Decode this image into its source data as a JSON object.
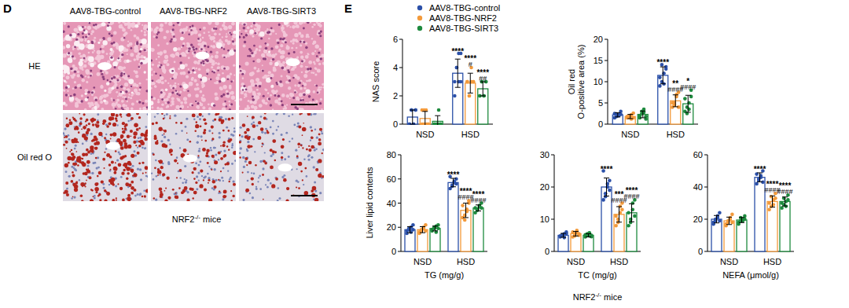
{
  "panel_d": {
    "label": "D",
    "columns": [
      "AAV8-TBG-control",
      "AAV8-TBG-NRF2",
      "AAV8-TBG-SIRT3"
    ],
    "rows": [
      "HE",
      "Oil red O"
    ],
    "caption": {
      "base": "NRF2",
      "sup": "-/-",
      "rest": " mice"
    }
  },
  "panel_e": {
    "label": "E",
    "shared_y_label": "Liver lipid contents",
    "caption": {
      "base": "NRF2",
      "sup": "-/-",
      "rest": " mice"
    }
  },
  "chart_data": [
    {
      "type": "bar",
      "y_label": [
        "NAS score"
      ],
      "categories": [
        "NSD",
        "HSD"
      ],
      "ylim": [
        0,
        6
      ],
      "yticks": [
        0,
        2,
        4,
        6
      ],
      "series": [
        {
          "name": "AAV8-TBG-control",
          "color": "#2b50a8",
          "values": [
            0.5,
            3.6
          ],
          "errors": [
            0.5,
            1.0
          ],
          "points": [
            [
              0,
              1,
              0,
              1,
              0,
              1,
              0,
              1
            ],
            [
              3,
              4,
              5,
              3,
              2,
              4,
              3,
              5
            ]
          ],
          "stars": [
            null,
            "****"
          ],
          "hashes": [
            null,
            null
          ]
        },
        {
          "name": "AAV8-TBG-NRF2",
          "color": "#f39a3b",
          "values": [
            0.4,
            2.9
          ],
          "errors": [
            0.5,
            0.7
          ],
          "points": [
            [
              0,
              1,
              0,
              0,
              1,
              0,
              1,
              0
            ],
            [
              3,
              2,
              4,
              3,
              3,
              2,
              3,
              3
            ]
          ],
          "stars": [
            null,
            "****"
          ],
          "hashes": [
            null,
            "#"
          ]
        },
        {
          "name": "AAV8-TBG-SIRT3",
          "color": "#1e8a3e",
          "values": [
            0.2,
            2.5
          ],
          "errors": [
            0.4,
            0.5
          ],
          "points": [
            [
              0,
              0,
              1,
              0,
              0,
              0,
              0,
              0
            ],
            [
              2,
              3,
              2,
              3,
              2,
              3,
              2,
              3
            ]
          ],
          "stars": [
            null,
            "****"
          ],
          "hashes": [
            null,
            "##"
          ]
        }
      ]
    },
    {
      "type": "bar",
      "y_label": [
        "Oil red",
        "O-positive area (%)"
      ],
      "categories": [
        "NSD",
        "HSD"
      ],
      "ylim": [
        0,
        20
      ],
      "yticks": [
        0,
        5,
        10,
        15,
        20
      ],
      "series": [
        {
          "color": "#2b50a8",
          "values": [
            2.2,
            11.5
          ],
          "errors": [
            0.5,
            2.0
          ],
          "points": [
            [
              2.5,
              1.8,
              2.2,
              3.0,
              1.5,
              2.4,
              2.0,
              2.3
            ],
            [
              9,
              10,
              12,
              13.5,
              11,
              14,
              9.5,
              13
            ]
          ],
          "stars": [
            null,
            "****"
          ],
          "hashes": [
            null,
            null
          ]
        },
        {
          "color": "#f39a3b",
          "values": [
            1.8,
            5.5
          ],
          "errors": [
            0.5,
            1.4
          ],
          "points": [
            [
              1.5,
              2.0,
              1.2,
              2.6,
              1.8,
              1.6,
              2.2,
              1.5
            ],
            [
              4,
              5,
              6.5,
              7.5,
              5,
              4.5,
              7,
              4
            ]
          ],
          "stars": [
            null,
            "**"
          ],
          "hashes": [
            null,
            "####"
          ]
        },
        {
          "color": "#1e8a3e",
          "values": [
            2.3,
            4.8
          ],
          "errors": [
            0.8,
            2.0
          ],
          "points": [
            [
              1.5,
              2.5,
              3.5,
              1.2,
              2.0,
              3.0,
              2.8,
              1.8
            ],
            [
              3,
              2.5,
              5,
              8,
              6,
              4,
              3.5,
              6.5
            ]
          ],
          "stars": [
            null,
            "*"
          ],
          "hashes": [
            null,
            "####"
          ]
        }
      ]
    },
    {
      "type": "bar",
      "x_label": "TG (mg/g)",
      "categories": [
        "NSD",
        "HSD"
      ],
      "ylim": [
        0,
        80
      ],
      "yticks": [
        0,
        20,
        40,
        60,
        80
      ],
      "series": [
        {
          "color": "#2b50a8",
          "values": [
            18,
            57
          ],
          "errors": [
            2.5,
            3.5
          ],
          "points": [
            [
              15,
              18,
              20,
              22,
              17,
              19,
              16,
              18
            ],
            [
              52,
              55,
              58,
              60,
              62,
              54,
              57,
              56
            ]
          ],
          "stars": [
            null,
            "****"
          ],
          "hashes": [
            null,
            null
          ]
        },
        {
          "color": "#f39a3b",
          "values": [
            18,
            34
          ],
          "errors": [
            2.5,
            6
          ],
          "points": [
            [
              15,
              17,
              20,
              22,
              16,
              18,
              19,
              17
            ],
            [
              28,
              30,
              35,
              42,
              38,
              26,
              33,
              40
            ]
          ],
          "stars": [
            null,
            "****"
          ],
          "hashes": [
            null,
            "####"
          ]
        },
        {
          "color": "#1e8a3e",
          "values": [
            19,
            36
          ],
          "errors": [
            2,
            2.5
          ],
          "points": [
            [
              17,
              19,
              21,
              22,
              18,
              20,
              16,
              19
            ],
            [
              32,
              35,
              38,
              40,
              36,
              34,
              37,
              36
            ]
          ],
          "stars": [
            null,
            "****"
          ],
          "hashes": [
            null,
            "####"
          ]
        }
      ]
    },
    {
      "type": "bar",
      "x_label": "TC (mg/g)",
      "categories": [
        "NSD",
        "HSD"
      ],
      "ylim": [
        0,
        30
      ],
      "yticks": [
        0,
        10,
        20,
        30
      ],
      "series": [
        {
          "color": "#2b50a8",
          "values": [
            5,
            20
          ],
          "errors": [
            0.6,
            2.8
          ],
          "points": [
            [
              4.5,
              5,
              5.5,
              6,
              4.8,
              5.2,
              4.3,
              5.5
            ],
            [
              16,
              18,
              20,
              22,
              25,
              17,
              21,
              19
            ]
          ],
          "stars": [
            null,
            "****"
          ],
          "hashes": [
            null,
            null
          ]
        },
        {
          "color": "#f39a3b",
          "values": [
            5.5,
            11.5
          ],
          "errors": [
            0.7,
            2.4
          ],
          "points": [
            [
              4.5,
              5.5,
              6.5,
              5,
              6,
              4.8,
              5.8,
              5.5
            ],
            [
              8,
              10,
              12,
              15,
              11,
              9,
              14,
              13
            ]
          ],
          "stars": [
            null,
            "***"
          ],
          "hashes": [
            null,
            "####"
          ]
        },
        {
          "color": "#1e8a3e",
          "values": [
            5,
            12
          ],
          "errors": [
            0.5,
            2.8
          ],
          "points": [
            [
              4.5,
              5,
              5.8,
              4.6,
              5.2,
              5.5,
              4.8,
              5
            ],
            [
              8,
              10,
              13,
              16,
              12,
              9,
              15,
              11
            ]
          ],
          "stars": [
            null,
            "****"
          ],
          "hashes": [
            null,
            "####"
          ]
        }
      ]
    },
    {
      "type": "bar",
      "x_label": "NEFA (μmol/g)",
      "categories": [
        "NSD",
        "HSD"
      ],
      "ylim": [
        0,
        60
      ],
      "yticks": [
        0,
        20,
        40,
        60
      ],
      "series": [
        {
          "color": "#2b50a8",
          "values": [
            20,
            46
          ],
          "errors": [
            2.3,
            2.8
          ],
          "points": [
            [
              17,
              19,
              22,
              24,
              18,
              20,
              21,
              19
            ],
            [
              42,
              44,
              46,
              50,
              48,
              45,
              47,
              43
            ]
          ],
          "stars": [
            null,
            "****"
          ],
          "hashes": [
            null,
            null
          ]
        },
        {
          "color": "#f39a3b",
          "values": [
            19,
            31
          ],
          "errors": [
            2.3,
            3.5
          ],
          "points": [
            [
              16,
              18,
              20,
              23,
              17,
              19,
              21,
              18
            ],
            [
              26,
              28,
              32,
              36,
              30,
              34,
              29,
              33
            ]
          ],
          "stars": [
            null,
            "****"
          ],
          "hashes": [
            null,
            "####"
          ]
        },
        {
          "color": "#1e8a3e",
          "values": [
            19.5,
            31
          ],
          "errors": [
            1.6,
            2.8
          ],
          "points": [
            [
              17,
              19,
              20,
              22,
              18,
              21,
              19,
              20
            ],
            [
              27,
              29,
              31,
              35,
              30,
              33,
              28,
              32
            ]
          ],
          "stars": [
            null,
            "****"
          ],
          "hashes": [
            null,
            "####"
          ]
        }
      ]
    }
  ]
}
